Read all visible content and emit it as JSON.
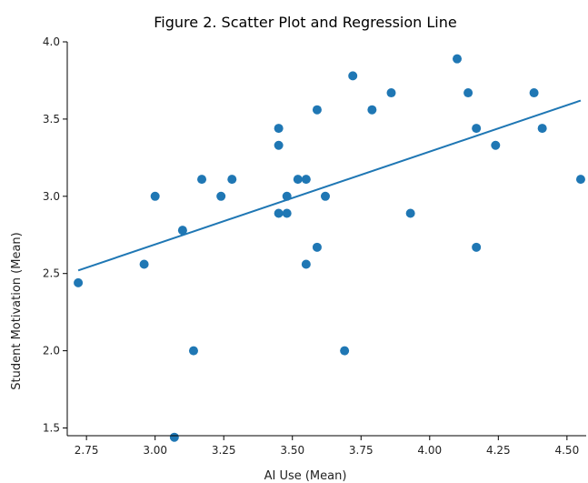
{
  "chart_data": {
    "type": "scatter",
    "title": "Figure 2. Scatter Plot and Regression Line",
    "xlabel": "AI Use (Mean)",
    "ylabel": "Student Motivation (Mean)",
    "xlim": [
      2.68,
      4.57
    ],
    "ylim": [
      1.45,
      4.0
    ],
    "x_ticks": [
      2.75,
      3.0,
      3.25,
      3.5,
      3.75,
      4.0,
      4.25,
      4.5
    ],
    "x_tick_labels": [
      "2.75",
      "3.00",
      "3.25",
      "3.50",
      "3.75",
      "4.00",
      "4.25",
      "4.50"
    ],
    "y_ticks": [
      1.5,
      2.0,
      2.5,
      3.0,
      3.5,
      4.0
    ],
    "y_tick_labels": [
      "1.5",
      "2.0",
      "2.5",
      "3.0",
      "3.5",
      "4.0"
    ],
    "grid": false,
    "color": "#1f77b4",
    "points": [
      {
        "x": 2.72,
        "y": 2.44
      },
      {
        "x": 2.96,
        "y": 2.56
      },
      {
        "x": 3.0,
        "y": 3.0
      },
      {
        "x": 3.07,
        "y": 1.44
      },
      {
        "x": 3.1,
        "y": 2.78
      },
      {
        "x": 3.14,
        "y": 2.0
      },
      {
        "x": 3.17,
        "y": 3.11
      },
      {
        "x": 3.24,
        "y": 3.0
      },
      {
        "x": 3.28,
        "y": 3.11
      },
      {
        "x": 3.45,
        "y": 3.44
      },
      {
        "x": 3.45,
        "y": 3.33
      },
      {
        "x": 3.45,
        "y": 2.89
      },
      {
        "x": 3.48,
        "y": 3.0
      },
      {
        "x": 3.48,
        "y": 2.89
      },
      {
        "x": 3.52,
        "y": 3.11
      },
      {
        "x": 3.55,
        "y": 3.11
      },
      {
        "x": 3.55,
        "y": 2.56
      },
      {
        "x": 3.59,
        "y": 3.56
      },
      {
        "x": 3.59,
        "y": 2.67
      },
      {
        "x": 3.62,
        "y": 3.0
      },
      {
        "x": 3.69,
        "y": 2.0
      },
      {
        "x": 3.72,
        "y": 3.78
      },
      {
        "x": 3.79,
        "y": 3.56
      },
      {
        "x": 3.86,
        "y": 3.67
      },
      {
        "x": 3.93,
        "y": 2.89
      },
      {
        "x": 4.1,
        "y": 3.89
      },
      {
        "x": 4.14,
        "y": 3.67
      },
      {
        "x": 4.17,
        "y": 3.44
      },
      {
        "x": 4.17,
        "y": 2.67
      },
      {
        "x": 4.24,
        "y": 3.33
      },
      {
        "x": 4.38,
        "y": 3.67
      },
      {
        "x": 4.41,
        "y": 3.44
      },
      {
        "x": 4.55,
        "y": 3.11
      }
    ],
    "regression_line": {
      "x": [
        2.72,
        4.55
      ],
      "y": [
        2.52,
        3.62
      ]
    }
  }
}
